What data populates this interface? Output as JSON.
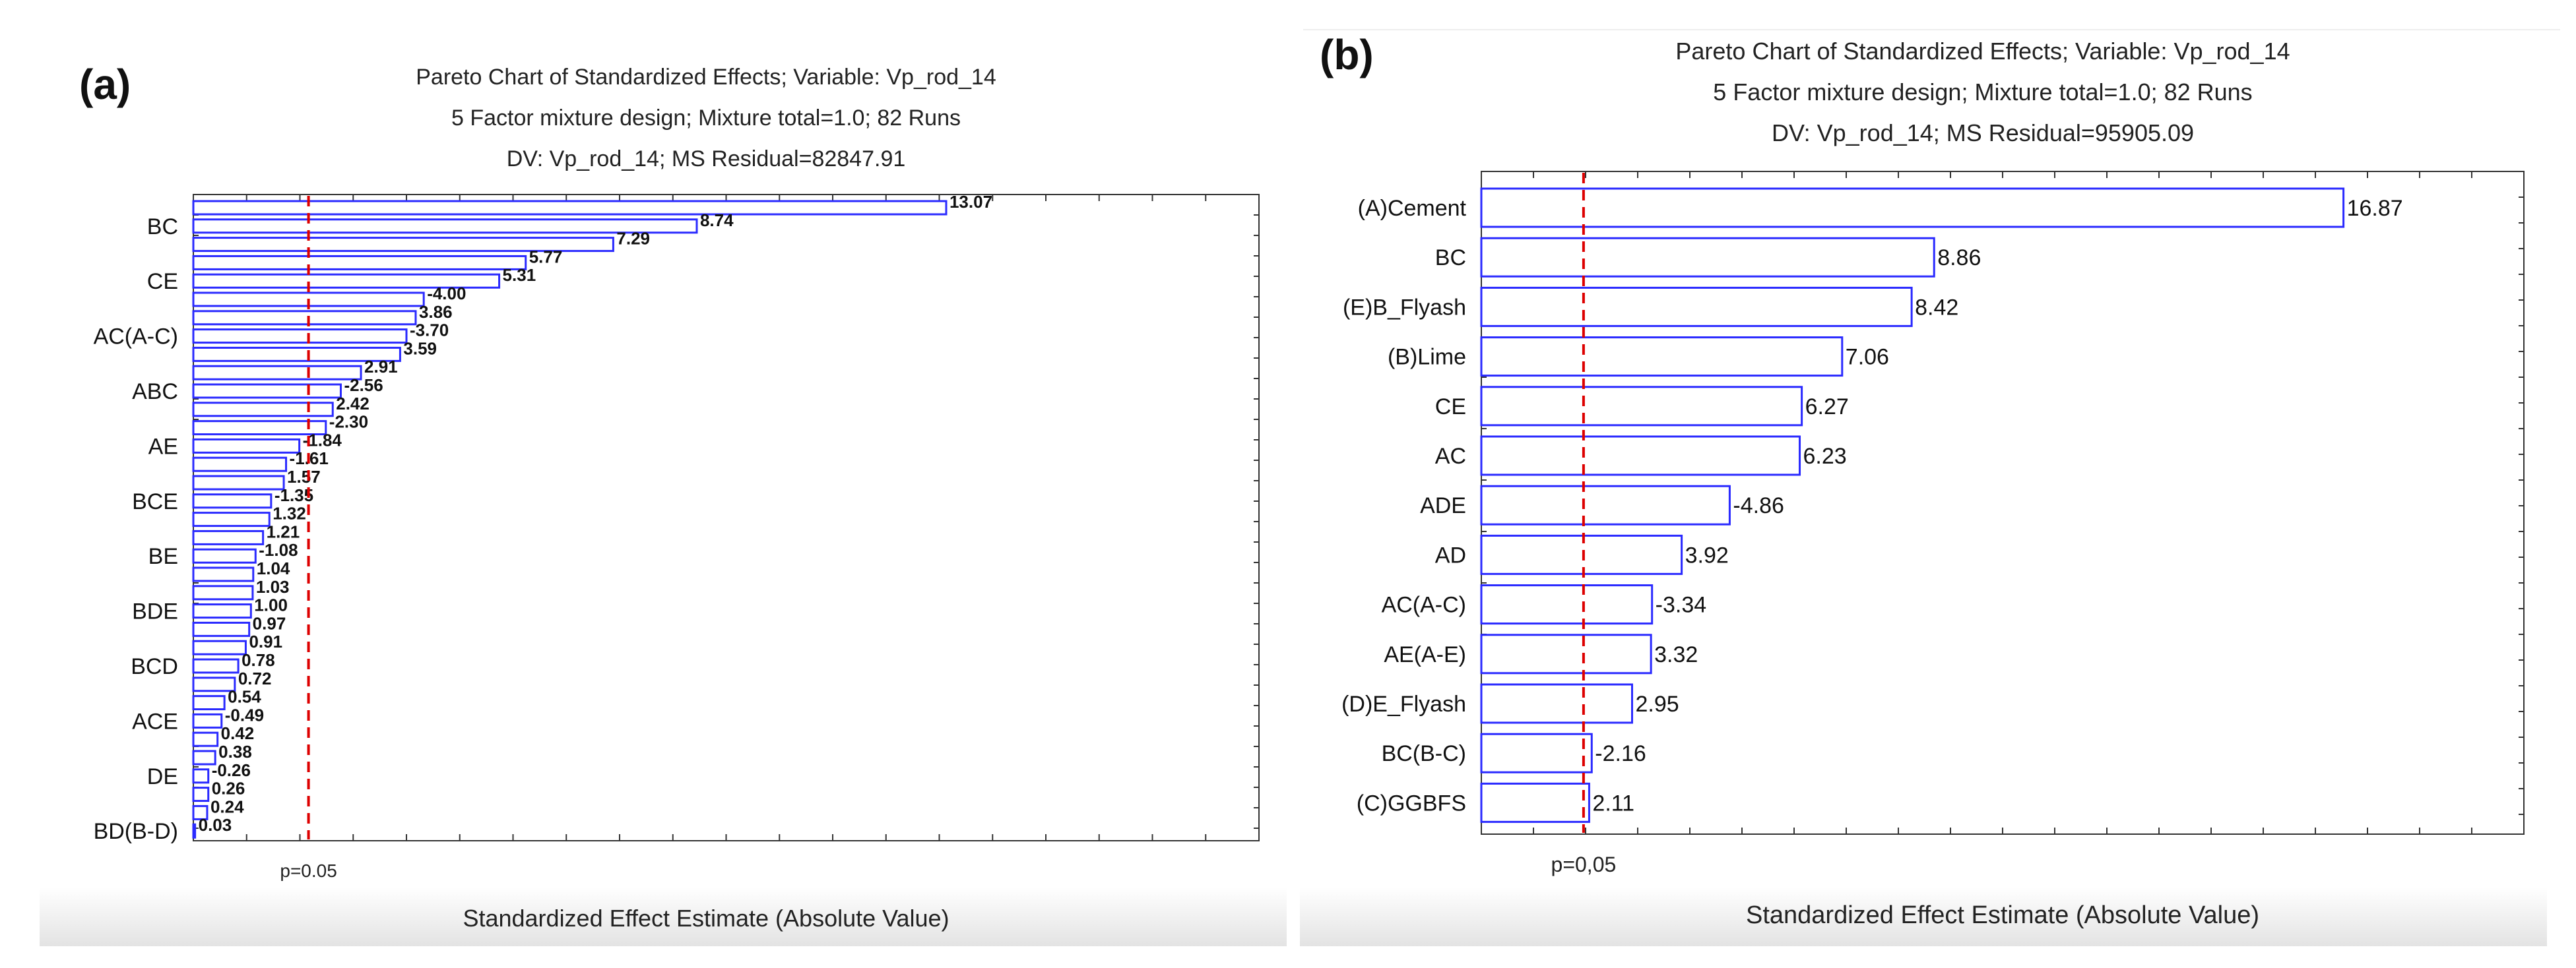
{
  "panels": [
    {
      "panel_label": "(a)",
      "title_lines": [
        "Pareto Chart of Standardized Effects; Variable: Vp_rod_14",
        "5 Factor mixture design; Mixture total=1.0; 82 Runs",
        "DV: Vp_rod_14; MS Residual=82847.91"
      ],
      "xlabel": "Standardized Effect Estimate (Absolute Value)",
      "p_label": "p=0.05"
    },
    {
      "panel_label": "(b)",
      "title_lines": [
        "Pareto Chart of Standardized Effects; Variable: Vp_rod_14",
        "5 Factor mixture design; Mixture total=1.0; 82 Runs",
        "DV: Vp_rod_14; MS Residual=95905.09"
      ],
      "xlabel": "Standardized Effect Estimate (Absolute Value)",
      "p_label": "p=0,05"
    }
  ],
  "chart_data": [
    {
      "type": "bar",
      "orientation": "horizontal",
      "title": "Pareto Chart of Standardized Effects; Variable: Vp_rod_14",
      "xlabel": "Standardized Effect Estimate (Absolute Value)",
      "xlim": [
        0,
        18.5
      ],
      "significance_line": 2.0,
      "bar_color": "#2a2aff",
      "line_color": "#dd0000",
      "values": [
        13.07,
        8.74,
        7.29,
        5.77,
        5.31,
        4.0,
        3.86,
        3.7,
        3.59,
        2.91,
        2.56,
        2.42,
        2.3,
        1.84,
        1.61,
        1.57,
        1.35,
        1.32,
        1.21,
        1.08,
        1.04,
        1.03,
        1.0,
        0.97,
        0.91,
        0.78,
        0.72,
        0.54,
        0.49,
        0.42,
        0.38,
        0.26,
        0.26,
        0.24,
        0.03
      ],
      "value_labels": [
        "13.07",
        "8.74",
        "7.29",
        "5.77",
        "5.31",
        "-4.00",
        "3.86",
        "-3.70",
        "3.59",
        "2.91",
        "-2.56",
        "2.42",
        "-2.30",
        "-1.84",
        "-1.61",
        "1.57",
        "-1.35",
        "1.32",
        "1.21",
        "-1.08",
        "1.04",
        "1.03",
        "1.00",
        "0.97",
        "0.91",
        "0.78",
        "0.72",
        "0.54",
        "-0.49",
        "0.42",
        "0.38",
        "-0.26",
        "0.26",
        "0.24",
        "0.03"
      ],
      "categories": [
        "",
        "BC",
        "",
        "",
        "CE",
        "",
        "",
        "AC(A-C)",
        "",
        "",
        "ABC",
        "",
        "",
        "AE",
        "",
        "",
        "BCE",
        "",
        "",
        "BE",
        "",
        "",
        "BDE",
        "",
        "",
        "BCD",
        "",
        "",
        "ACE",
        "",
        "",
        "DE",
        "",
        "",
        "BD(B-D)"
      ]
    },
    {
      "type": "bar",
      "orientation": "horizontal",
      "title": "Pareto Chart of Standardized Effects; Variable: Vp_rod_14",
      "xlabel": "Standardized Effect Estimate (Absolute Value)",
      "xlim": [
        0,
        20.4
      ],
      "significance_line": 2.0,
      "bar_color": "#2a2aff",
      "line_color": "#dd0000",
      "values": [
        16.87,
        8.86,
        8.42,
        7.06,
        6.27,
        6.23,
        4.86,
        3.92,
        3.34,
        3.32,
        2.95,
        2.16,
        2.11
      ],
      "value_labels": [
        "16.87",
        "8.86",
        "8.42",
        "7.06",
        "6.27",
        "6.23",
        "-4.86",
        "3.92",
        "-3.34",
        "3.32",
        "2.95",
        "-2.16",
        "2.11"
      ],
      "categories": [
        "(A)Cement",
        "BC",
        "(E)B_Flyash",
        "(B)Lime",
        "CE",
        "AC",
        "ADE",
        "AD",
        "AC(A-C)",
        "AE(A-E)",
        "(D)E_Flyash",
        "BC(B-C)",
        "(C)GGBFS"
      ]
    }
  ]
}
